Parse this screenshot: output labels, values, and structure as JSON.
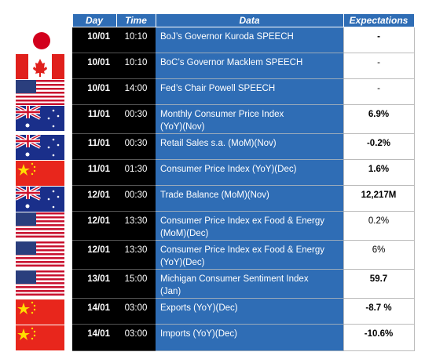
{
  "header": {
    "day": "Day",
    "time": "Time",
    "data": "Data",
    "expectations": "Expectations"
  },
  "rows": [
    {
      "day": "10/01",
      "time": "10:10",
      "event": [
        "BoJ’s Governor Kuroda SPEECH"
      ],
      "expectation": "-"
    },
    {
      "day": "10/01",
      "time": "10:10",
      "event": [
        "BoC’s Governor Macklem SPEECH"
      ],
      "expectation": "-"
    },
    {
      "day": "10/01",
      "time": "14:00",
      "event": [
        "Fed’s Chair Powell SPEECH"
      ],
      "expectation": "-"
    },
    {
      "day": "11/01",
      "time": "00:30",
      "event": [
        "Monthly Consumer Price Index",
        "(YoY)(Nov)"
      ],
      "expectation": "6.9%"
    },
    {
      "day": "11/01",
      "time": "00:30",
      "event": [
        "Retail Sales s.a. (MoM)(Nov)"
      ],
      "expectation": "-0.2%"
    },
    {
      "day": "11/01",
      "time": "01:30",
      "event": [
        "Consumer Price Index (YoY)(Dec)"
      ],
      "expectation": "1.6%"
    },
    {
      "day": "12/01",
      "time": "00:30",
      "event": [
        "Trade Balance (MoM)(Nov)"
      ],
      "expectation": "12,217M"
    },
    {
      "day": "12/01",
      "time": "13:30",
      "event": [
        "Consumer Price Index ex Food & Energy",
        "(MoM)(Dec)"
      ],
      "expectation": "0.2%"
    },
    {
      "day": "12/01",
      "time": "13:30",
      "event": [
        "Consumer Price Index ex Food & Energy",
        "(YoY)(Dec)"
      ],
      "expectation": "6%"
    },
    {
      "day": "13/01",
      "time": "15:00",
      "event": [
        "Michigan Consumer Sentiment Index",
        "(Jan)"
      ],
      "expectation": "59.7"
    },
    {
      "day": "14/01",
      "time": "03:00",
      "event": [
        "Exports (YoY)(Dec)"
      ],
      "expectation": "-8.7 %"
    },
    {
      "day": "14/01",
      "time": "03:00",
      "event": [
        "Imports (YoY)(Dec)"
      ],
      "expectation": "-10.6%"
    }
  ]
}
